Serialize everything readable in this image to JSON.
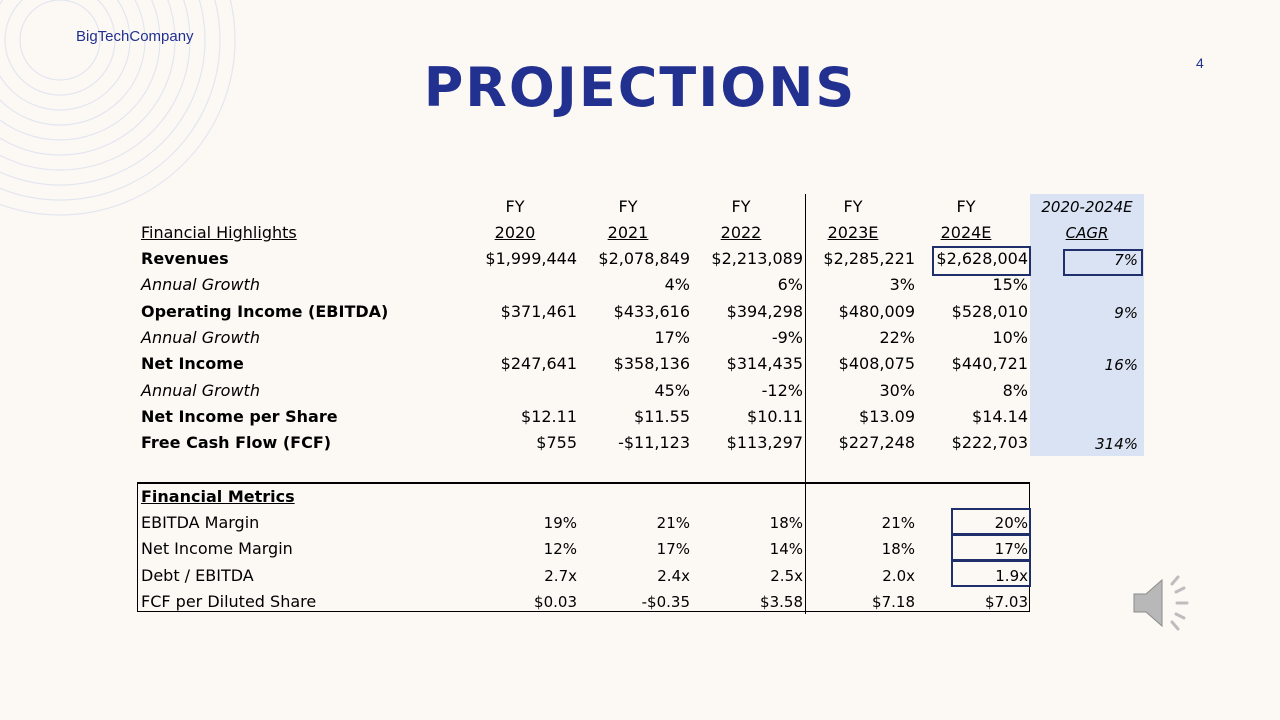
{
  "company": "BigTechCompany",
  "page_number": "4",
  "title": "PROJECTIONS",
  "columns": [
    {
      "fy": "FY",
      "year": "2020"
    },
    {
      "fy": "FY",
      "year": "2021"
    },
    {
      "fy": "FY",
      "year": "2022"
    },
    {
      "fy": "FY",
      "year": "2023E"
    },
    {
      "fy": "FY",
      "year": "2024E"
    }
  ],
  "cagr_header": {
    "line1": "2020-2024E",
    "line2": "CAGR"
  },
  "highlights_label": "Financial Highlights",
  "highlights": [
    {
      "label": "Revenues",
      "style": "bold",
      "values": [
        "$1,999,444",
        "$2,078,849",
        "$2,213,089",
        "$2,285,221",
        "$2,628,004"
      ],
      "cagr": "7%"
    },
    {
      "label": "Annual Growth",
      "style": "italic",
      "values": [
        "",
        "4%",
        "6%",
        "3%",
        "15%"
      ],
      "cagr": ""
    },
    {
      "label": "Operating Income (EBITDA)",
      "style": "bold",
      "values": [
        "$371,461",
        "$433,616",
        "$394,298",
        "$480,009",
        "$528,010"
      ],
      "cagr": "9%"
    },
    {
      "label": "Annual Growth",
      "style": "italic",
      "values": [
        "",
        "17%",
        "-9%",
        "22%",
        "10%"
      ],
      "cagr": ""
    },
    {
      "label": "Net Income",
      "style": "bold",
      "values": [
        "$247,641",
        "$358,136",
        "$314,435",
        "$408,075",
        "$440,721"
      ],
      "cagr": "16%"
    },
    {
      "label": "Annual Growth",
      "style": "italic",
      "values": [
        "",
        "45%",
        "-12%",
        "30%",
        "8%"
      ],
      "cagr": ""
    },
    {
      "label": "Net Income per Share",
      "style": "bold",
      "values": [
        "$12.11",
        "$11.55",
        "$10.11",
        "$13.09",
        "$14.14"
      ],
      "cagr": ""
    },
    {
      "label": "Free Cash Flow (FCF)",
      "style": "bold",
      "values": [
        "$755",
        "-$11,123",
        "$113,297",
        "$227,248",
        "$222,703"
      ],
      "cagr": "314%"
    }
  ],
  "metrics_label": "Financial Metrics",
  "metrics": [
    {
      "label": "EBITDA Margin",
      "values": [
        "19%",
        "21%",
        "18%",
        "21%",
        "20%"
      ]
    },
    {
      "label": "Net Income Margin",
      "values": [
        "12%",
        "17%",
        "14%",
        "18%",
        "17%"
      ]
    },
    {
      "label": "Debt / EBITDA",
      "values": [
        "2.7x",
        "2.4x",
        "2.5x",
        "2.0x",
        "1.9x"
      ]
    },
    {
      "label": "FCF per Diluted Share",
      "values": [
        "$0.03",
        "-$0.35",
        "$3.58",
        "$7.18",
        "$7.03"
      ]
    }
  ],
  "colors": {
    "accent": "#22318f",
    "cagr_fill": "#dae3f3",
    "highlight_border": "#1f2f6b"
  },
  "icons": {
    "decor": "concentric-arcs",
    "audio": "speaker-icon"
  }
}
